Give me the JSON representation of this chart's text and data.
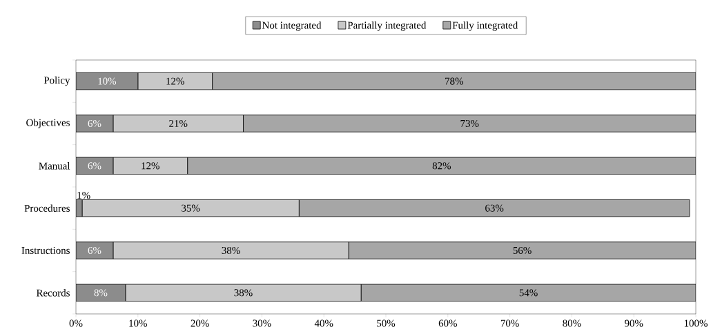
{
  "chart_data": {
    "type": "bar",
    "orientation": "horizontal",
    "stacked": true,
    "categories": [
      "Policy",
      "Objectives",
      "Manual",
      "Procedures",
      "Instructions",
      "Records"
    ],
    "series": [
      {
        "name": "Not integrated",
        "color": "#8c8c8c",
        "values": [
          10,
          6,
          6,
          1,
          6,
          8
        ],
        "value_labels": [
          "10%",
          "6%",
          "6%",
          "1%",
          "6%",
          "8%"
        ]
      },
      {
        "name": "Partially integrated",
        "color": "#c8c8c8",
        "values": [
          12,
          21,
          12,
          35,
          38,
          38
        ],
        "value_labels": [
          "12%",
          "21%",
          "12%",
          "35%",
          "38%",
          "38%"
        ]
      },
      {
        "name": "Fully integrated",
        "color": "#a6a6a6",
        "values": [
          78,
          73,
          82,
          63,
          56,
          54
        ],
        "value_labels": [
          "78%",
          "73%",
          "82%",
          "63%",
          "56%",
          "54%"
        ]
      }
    ],
    "xlim": [
      0,
      100
    ],
    "xticks": [
      {
        "value": 0,
        "label": "0%"
      },
      {
        "value": 10,
        "label": "10%"
      },
      {
        "value": 20,
        "label": "20%"
      },
      {
        "value": 30,
        "label": "30%"
      },
      {
        "value": 40,
        "label": "40%"
      },
      {
        "value": 50,
        "label": "50%"
      },
      {
        "value": 60,
        "label": "60%"
      },
      {
        "value": 70,
        "label": "70%"
      },
      {
        "value": 80,
        "label": "80%"
      },
      {
        "value": 90,
        "label": "90%"
      },
      {
        "value": 100,
        "label": "100%"
      }
    ],
    "legend": "top",
    "grid": false
  }
}
